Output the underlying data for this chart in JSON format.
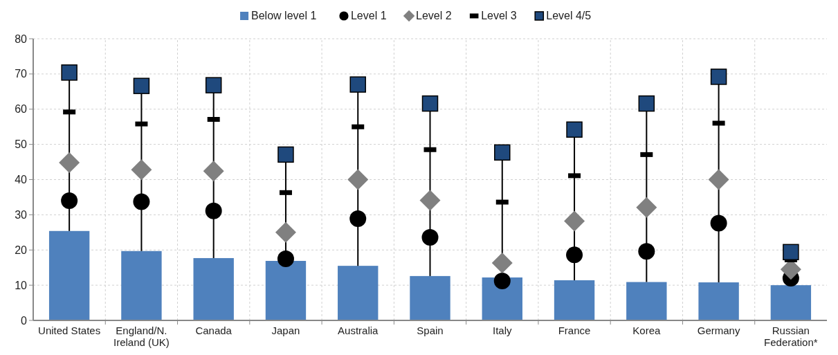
{
  "chart_data": {
    "type": "bar",
    "categories": [
      "United States",
      "England/N. Ireland (UK)",
      "Canada",
      "Japan",
      "Australia",
      "Spain",
      "Italy",
      "France",
      "Korea",
      "Germany",
      "Russian Federation*"
    ],
    "series": [
      {
        "name": "Below level 1",
        "color": "#4f81bd",
        "values": [
          25.4,
          19.7,
          17.7,
          16.9,
          15.5,
          12.6,
          12.2,
          11.4,
          10.9,
          10.8,
          10.0
        ]
      },
      {
        "type": "line",
        "color": "#000000",
        "x": [
          "United States",
          "United States"
        ],
        "values": [
          25.4,
          70.4
        ]
      },
      {
        "type": "line",
        "color": "#000000",
        "x": [
          "England/N. Ireland (UK)",
          "England/N. Ireland (UK)"
        ],
        "values": [
          19.7,
          66.6
        ]
      },
      {
        "type": "line",
        "color": "#000000",
        "x": [
          "Canada",
          "Canada"
        ],
        "values": [
          17.7,
          66.8
        ]
      },
      {
        "type": "line",
        "color": "#000000",
        "x": [
          "Japan",
          "Japan"
        ],
        "values": [
          16.9,
          47.1
        ]
      },
      {
        "type": "line",
        "color": "#000000",
        "x": [
          "Australia",
          "Australia"
        ],
        "values": [
          15.5,
          67.0
        ]
      },
      {
        "type": "line",
        "color": "#000000",
        "x": [
          "Spain",
          "Spain"
        ],
        "values": [
          12.6,
          61.6
        ]
      },
      {
        "type": "line",
        "color": "#000000",
        "x": [
          "Italy",
          "Italy"
        ],
        "values": [
          11.2,
          47.7
        ]
      },
      {
        "type": "line",
        "color": "#000000",
        "x": [
          "France",
          "France"
        ],
        "values": [
          11.4,
          54.2
        ]
      },
      {
        "type": "line",
        "color": "#000000",
        "x": [
          "Korea",
          "Korea"
        ],
        "values": [
          10.9,
          61.6
        ]
      },
      {
        "type": "line",
        "color": "#000000",
        "x": [
          "Germany",
          "Germany"
        ],
        "values": [
          10.8,
          69.2
        ]
      },
      {
        "name": "Level 1",
        "type": "scatter",
        "marker": "circle",
        "color": "#000000",
        "values": [
          34.0,
          33.7,
          31.1,
          17.5,
          28.9,
          23.6,
          11.2,
          18.6,
          19.6,
          27.6,
          12.0
        ]
      },
      {
        "name": "Level 2",
        "type": "scatter",
        "marker": "diamond",
        "color": "#808080",
        "values": [
          44.8,
          42.8,
          42.4,
          25.0,
          40.0,
          34.1,
          16.3,
          28.2,
          32.1,
          40.0,
          14.5
        ]
      },
      {
        "name": "Level 3",
        "type": "scatter",
        "color": "#000000",
        "values": [
          59.2,
          55.8,
          57.1,
          36.3,
          55.0,
          48.5,
          33.6,
          41.1,
          47.1,
          56.0,
          17.2
        ]
      },
      {
        "name": "Level 4/5",
        "type": "scatter",
        "marker": "square",
        "color": "#1f497d",
        "values": [
          70.4,
          66.6,
          66.8,
          47.1,
          67.0,
          61.6,
          47.7,
          54.2,
          61.6,
          69.2,
          19.4
        ]
      }
    ],
    "ylim": [
      0,
      80
    ],
    "yticks": [
      0,
      10,
      20,
      30,
      40,
      50,
      60,
      70,
      80
    ],
    "grid": true,
    "legend": "top"
  }
}
